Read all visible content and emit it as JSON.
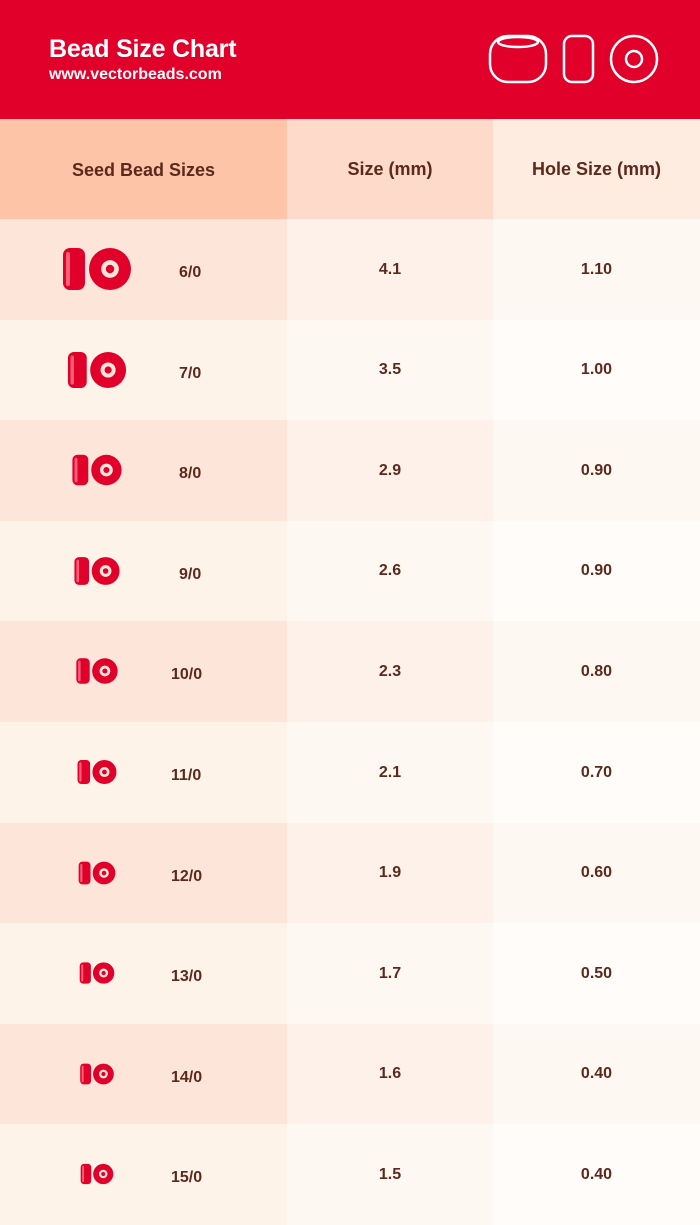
{
  "header": {
    "title": "Bead Size Chart",
    "subtitle": "www.vectorbeads.com",
    "icons": [
      "bead-side-view-icon",
      "bead-profile-icon",
      "bead-top-view-icon"
    ],
    "bg_color": "#e1002a"
  },
  "chart_data": {
    "type": "table",
    "columns": [
      "Seed Bead Sizes",
      "Size (mm)",
      "Hole Size (mm)"
    ],
    "rows": [
      {
        "size_label": "6/0",
        "size_mm": "4.1",
        "hole_mm": "1.10"
      },
      {
        "size_label": "7/0",
        "size_mm": "3.5",
        "hole_mm": "1.00"
      },
      {
        "size_label": "8/0",
        "size_mm": "2.9",
        "hole_mm": "0.90"
      },
      {
        "size_label": "9/0",
        "size_mm": "2.6",
        "hole_mm": "0.90"
      },
      {
        "size_label": "10/0",
        "size_mm": "2.3",
        "hole_mm": "0.80"
      },
      {
        "size_label": "11/0",
        "size_mm": "2.1",
        "hole_mm": "0.70"
      },
      {
        "size_label": "12/0",
        "size_mm": "1.9",
        "hole_mm": "0.60"
      },
      {
        "size_label": "13/0",
        "size_mm": "1.7",
        "hole_mm": "0.50"
      },
      {
        "size_label": "14/0",
        "size_mm": "1.6",
        "hole_mm": "0.40"
      },
      {
        "size_label": "15/0",
        "size_mm": "1.5",
        "hole_mm": "0.40"
      }
    ],
    "bead_color": "#e1002a"
  }
}
